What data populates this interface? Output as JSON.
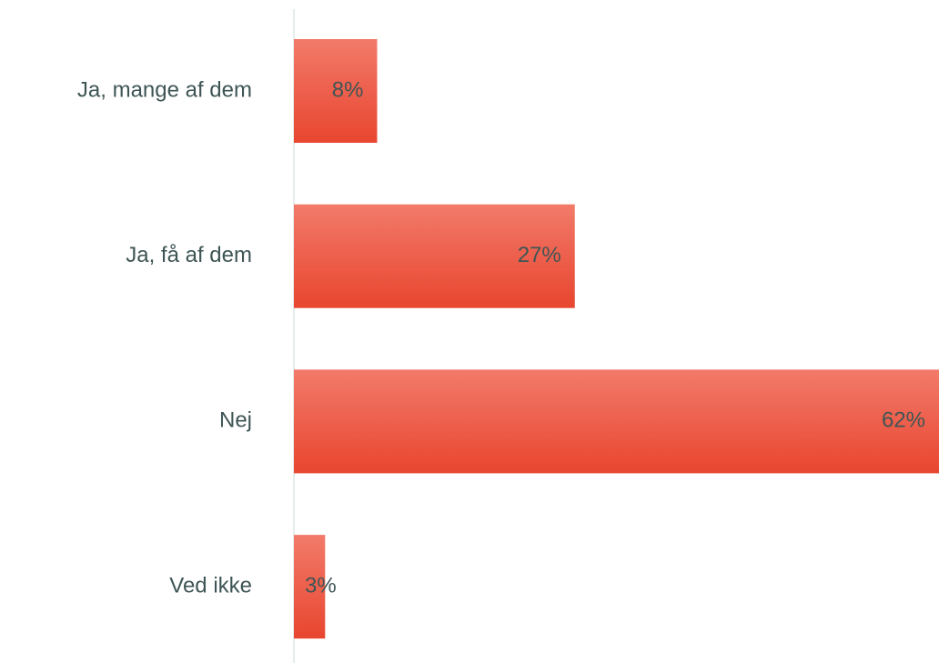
{
  "chart_data": {
    "type": "bar",
    "orientation": "horizontal",
    "categories": [
      "Ja, mange af dem",
      "Ja, få af dem",
      "Nej",
      "Ved ikke"
    ],
    "values": [
      8,
      27,
      62,
      3
    ],
    "value_labels": [
      "8%",
      "27%",
      "62%",
      "3%"
    ],
    "color": "#e8462f"
  }
}
